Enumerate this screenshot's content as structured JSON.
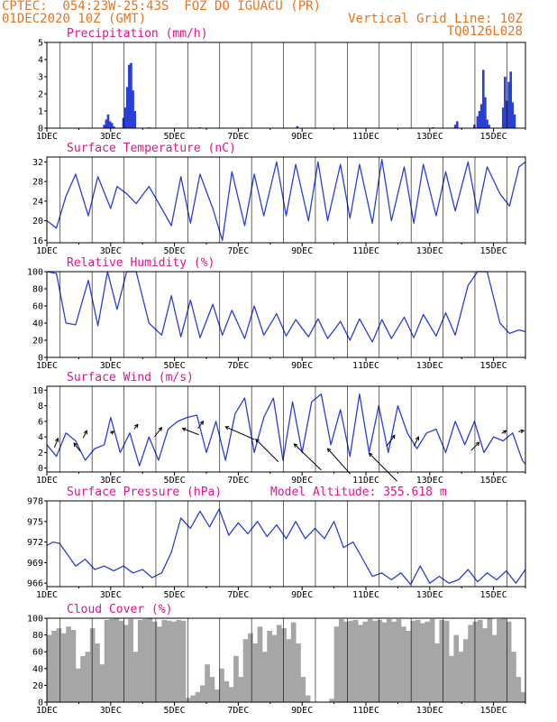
{
  "header": {
    "line1_left": "CPTEC:  054:23W-25:43S  FOZ DO IGUACU (PR)",
    "line2_left": "01DEC2020 10Z (GMT)",
    "line2_right": "Vertical Grid Line: 10Z",
    "line3_right": "TQ0126L028"
  },
  "colors": {
    "header": "#e8731c",
    "title": "#e0148c",
    "line": "#2a3fd6",
    "cloud": "#a6a6a6",
    "grid": "#000000"
  },
  "chart_data": [
    {
      "id": "precip",
      "type": "bar",
      "title": "Precipitation (mm/h)",
      "ylim": [
        0,
        5
      ],
      "yticks": [
        0,
        1,
        2,
        3,
        4,
        5
      ],
      "xticks": [
        "1DEC",
        "3DEC",
        "5DEC",
        "7DEC",
        "9DEC",
        "11DEC",
        "13DEC",
        "15DEC"
      ],
      "bars": [
        {
          "x": 2.8,
          "y": 0.2
        },
        {
          "x": 2.86,
          "y": 0.5
        },
        {
          "x": 2.92,
          "y": 0.8
        },
        {
          "x": 2.98,
          "y": 0.4
        },
        {
          "x": 3.04,
          "y": 0.3
        },
        {
          "x": 3.1,
          "y": 0.1
        },
        {
          "x": 3.4,
          "y": 0.6
        },
        {
          "x": 3.46,
          "y": 1.2
        },
        {
          "x": 3.52,
          "y": 2.4
        },
        {
          "x": 3.58,
          "y": 3.7
        },
        {
          "x": 3.64,
          "y": 3.8
        },
        {
          "x": 3.7,
          "y": 2.2
        },
        {
          "x": 3.76,
          "y": 1.0
        },
        {
          "x": 4.2,
          "y": 0.05
        },
        {
          "x": 5.8,
          "y": 0.05
        },
        {
          "x": 8.85,
          "y": 0.12
        },
        {
          "x": 13.1,
          "y": 0.05
        },
        {
          "x": 13.8,
          "y": 0.2
        },
        {
          "x": 13.86,
          "y": 0.4
        },
        {
          "x": 14.4,
          "y": 0.2
        },
        {
          "x": 14.5,
          "y": 0.7
        },
        {
          "x": 14.56,
          "y": 1.0
        },
        {
          "x": 14.62,
          "y": 1.4
        },
        {
          "x": 14.68,
          "y": 3.4
        },
        {
          "x": 14.74,
          "y": 1.8
        },
        {
          "x": 14.8,
          "y": 0.5
        },
        {
          "x": 14.86,
          "y": 0.2
        },
        {
          "x": 15.3,
          "y": 1.2
        },
        {
          "x": 15.36,
          "y": 3.0
        },
        {
          "x": 15.42,
          "y": 1.6
        },
        {
          "x": 15.48,
          "y": 2.7
        },
        {
          "x": 15.54,
          "y": 3.3
        },
        {
          "x": 15.6,
          "y": 1.5
        },
        {
          "x": 15.66,
          "y": 0.8
        }
      ]
    },
    {
      "id": "temp",
      "type": "line",
      "title": "Surface Temperature (nC)",
      "ylim": [
        15.5,
        33
      ],
      "yticks": [
        16,
        20,
        24,
        28,
        32
      ],
      "xticks": [
        "1DEC",
        "3DEC",
        "5DEC",
        "7DEC",
        "9DEC",
        "11DEC",
        "13DEC",
        "15DEC"
      ],
      "x": [
        1.0,
        1.3,
        1.6,
        1.9,
        2.3,
        2.6,
        3.0,
        3.2,
        3.5,
        3.8,
        4.2,
        4.6,
        4.9,
        5.2,
        5.5,
        5.8,
        6.2,
        6.5,
        6.8,
        7.2,
        7.5,
        7.8,
        8.2,
        8.5,
        8.8,
        9.2,
        9.5,
        9.8,
        10.2,
        10.5,
        10.8,
        11.2,
        11.5,
        11.8,
        12.2,
        12.5,
        12.8,
        13.2,
        13.5,
        13.8,
        14.2,
        14.5,
        14.8,
        15.2,
        15.5,
        15.8,
        16.0
      ],
      "y": [
        20,
        18.5,
        25,
        29.5,
        21,
        29,
        22.5,
        27,
        25.5,
        23.5,
        27,
        22.5,
        19,
        29,
        19.5,
        29.5,
        22.5,
        16,
        30,
        19,
        29.5,
        21,
        32,
        21,
        31.5,
        20,
        32,
        20,
        31.5,
        20.5,
        31.5,
        19.5,
        32.5,
        20,
        31,
        19.5,
        31.5,
        21,
        30,
        22,
        32,
        21.5,
        31,
        25.5,
        23,
        31,
        32
      ]
    },
    {
      "id": "rh",
      "type": "line",
      "title": "Relative Humidity (%)",
      "ylim": [
        0,
        100
      ],
      "yticks": [
        0,
        20,
        40,
        60,
        80,
        100
      ],
      "xticks": [
        "1DEC",
        "3DEC",
        "5DEC",
        "7DEC",
        "9DEC",
        "11DEC",
        "13DEC",
        "15DEC"
      ],
      "x": [
        1.0,
        1.3,
        1.6,
        1.9,
        2.3,
        2.6,
        2.9,
        3.2,
        3.5,
        3.8,
        4.2,
        4.6,
        4.9,
        5.2,
        5.5,
        5.8,
        6.2,
        6.5,
        6.8,
        7.2,
        7.5,
        7.8,
        8.2,
        8.5,
        8.8,
        9.2,
        9.5,
        9.8,
        10.2,
        10.5,
        10.8,
        11.2,
        11.5,
        11.8,
        12.2,
        12.5,
        12.8,
        13.2,
        13.5,
        13.8,
        14.2,
        14.5,
        14.8,
        15.2,
        15.5,
        15.8,
        16.0
      ],
      "y": [
        100,
        98,
        40,
        38,
        90,
        37,
        100,
        56,
        100,
        100,
        40,
        26,
        72,
        24,
        67,
        23,
        62,
        26,
        55,
        22,
        60,
        26,
        51,
        25,
        44,
        24,
        45,
        22,
        42,
        20,
        45,
        18,
        44,
        22,
        47,
        23,
        50,
        25,
        52,
        26,
        84,
        100,
        100,
        40,
        28,
        32,
        30
      ]
    },
    {
      "id": "wind",
      "type": "line",
      "title": "Surface Wind (m/s)",
      "ylim": [
        -0.5,
        10.5
      ],
      "yticks": [
        0,
        2,
        4,
        6,
        8,
        10
      ],
      "xticks": [
        "1DEC",
        "3DEC",
        "5DEC",
        "7DEC",
        "9DEC",
        "11DEC",
        "13DEC",
        "15DEC"
      ],
      "x": [
        1.0,
        1.3,
        1.6,
        1.9,
        2.2,
        2.5,
        2.8,
        3.0,
        3.3,
        3.6,
        3.9,
        4.2,
        4.5,
        4.8,
        5.1,
        5.4,
        5.7,
        6.0,
        6.3,
        6.6,
        6.9,
        7.2,
        7.5,
        7.8,
        8.1,
        8.4,
        8.7,
        9.0,
        9.3,
        9.6,
        9.9,
        10.2,
        10.5,
        10.8,
        11.1,
        11.4,
        11.7,
        12.0,
        12.3,
        12.6,
        12.9,
        13.2,
        13.5,
        13.8,
        14.1,
        14.4,
        14.7,
        15.0,
        15.3,
        15.6,
        15.9,
        16.0
      ],
      "y": [
        3,
        1.5,
        4.5,
        3.5,
        1,
        2.5,
        3,
        6.5,
        2,
        4.5,
        0.3,
        4,
        1,
        5,
        6,
        6.5,
        6.8,
        2,
        6,
        1,
        7,
        9,
        2,
        6.5,
        9,
        1,
        8.5,
        2,
        8.5,
        9.5,
        3,
        7.5,
        1.5,
        9.5,
        2,
        8,
        2,
        8,
        4.5,
        2.5,
        4.5,
        5,
        2,
        6,
        3,
        6,
        2,
        4,
        3.5,
        4.5,
        1,
        0.5
      ],
      "arrows": [
        {
          "x": 1.35,
          "y": 3.8,
          "dx": -4,
          "dy": 10
        },
        {
          "x": 1.85,
          "y": 3.2,
          "dx": 7,
          "dy": 9
        },
        {
          "x": 2.25,
          "y": 4.8,
          "dx": -4,
          "dy": 8
        },
        {
          "x": 3.1,
          "y": 4.7,
          "dx": -4,
          "dy": 2
        },
        {
          "x": 3.85,
          "y": 5.6,
          "dx": -4,
          "dy": 5
        },
        {
          "x": 4.6,
          "y": 5.2,
          "dx": -8,
          "dy": 10
        },
        {
          "x": 5.25,
          "y": 5.1,
          "dx": 18,
          "dy": 7
        },
        {
          "x": 5.9,
          "y": 6.0,
          "dx": -6,
          "dy": 8
        },
        {
          "x": 6.6,
          "y": 5.3,
          "dx": 32,
          "dy": 14
        },
        {
          "x": 7.55,
          "y": 3.7,
          "dx": 25,
          "dy": 25
        },
        {
          "x": 8.75,
          "y": 3.1,
          "dx": 30,
          "dy": 29
        },
        {
          "x": 9.8,
          "y": 2.5,
          "dx": 25,
          "dy": 28
        },
        {
          "x": 11.1,
          "y": 1.9,
          "dx": 31,
          "dy": 31
        },
        {
          "x": 11.9,
          "y": 4.2,
          "dx": -9,
          "dy": 12
        },
        {
          "x": 12.65,
          "y": 4.0,
          "dx": -5,
          "dy": 10
        },
        {
          "x": 14.55,
          "y": 3.3,
          "dx": -9,
          "dy": 9
        },
        {
          "x": 15.4,
          "y": 4.8,
          "dx": -5,
          "dy": 3
        },
        {
          "x": 15.95,
          "y": 4.8,
          "dx": -6,
          "dy": 1
        }
      ]
    },
    {
      "id": "pres",
      "type": "line",
      "title": "Surface Pressure (hPa)",
      "subtitle": "Model Altitude: 355.618 m",
      "ylim": [
        965.5,
        978
      ],
      "yticks": [
        966,
        969,
        972,
        975,
        978
      ],
      "xticks": [
        "1DEC",
        "3DEC",
        "5DEC",
        "7DEC",
        "9DEC",
        "11DEC",
        "13DEC",
        "15DEC"
      ],
      "x": [
        1.0,
        1.2,
        1.4,
        1.6,
        1.9,
        2.2,
        2.5,
        2.8,
        3.1,
        3.4,
        3.7,
        4.0,
        4.3,
        4.6,
        4.9,
        5.2,
        5.5,
        5.8,
        6.1,
        6.4,
        6.7,
        7.0,
        7.3,
        7.6,
        7.9,
        8.2,
        8.5,
        8.8,
        9.1,
        9.4,
        9.7,
        10.0,
        10.3,
        10.6,
        10.9,
        11.2,
        11.5,
        11.8,
        12.1,
        12.4,
        12.7,
        13.0,
        13.3,
        13.6,
        13.9,
        14.2,
        14.5,
        14.8,
        15.1,
        15.4,
        15.7,
        16.0
      ],
      "y": [
        971.5,
        972,
        971.8,
        970.5,
        968.5,
        969.5,
        968,
        968.5,
        967.8,
        968.5,
        967.5,
        968,
        966.8,
        967.5,
        970.5,
        975.5,
        974,
        976.5,
        974.2,
        976.8,
        973,
        974.8,
        973.2,
        975,
        972.8,
        974.5,
        972.5,
        975,
        972.5,
        974,
        972.5,
        975,
        971.2,
        972,
        969.5,
        967,
        967.5,
        966.5,
        967.5,
        965.8,
        968.5,
        966,
        967,
        966,
        966.5,
        968,
        966.2,
        967.5,
        966.5,
        967.8,
        966,
        968
      ]
    },
    {
      "id": "cloud",
      "type": "area",
      "title": "Cloud Cover (%)",
      "ylim": [
        0,
        100
      ],
      "yticks": [
        0,
        20,
        40,
        60,
        80,
        100
      ],
      "xticks": [
        "1DEC",
        "3DEC",
        "5DEC",
        "7DEC",
        "9DEC",
        "11DEC",
        "13DEC",
        "15DEC"
      ],
      "x": [
        1.0,
        1.15,
        1.3,
        1.45,
        1.6,
        1.75,
        1.9,
        2.05,
        2.2,
        2.35,
        2.5,
        2.65,
        2.8,
        2.95,
        3.1,
        3.25,
        3.4,
        3.55,
        3.7,
        3.85,
        4.0,
        4.15,
        4.3,
        4.45,
        4.6,
        4.75,
        4.9,
        5.05,
        5.2,
        5.35,
        5.5,
        5.65,
        5.8,
        5.95,
        6.1,
        6.25,
        6.4,
        6.55,
        6.7,
        6.85,
        7.0,
        7.15,
        7.3,
        7.45,
        7.6,
        7.75,
        7.9,
        8.05,
        8.2,
        8.35,
        8.5,
        8.65,
        8.8,
        8.95,
        9.1,
        9.25,
        9.4,
        9.55,
        9.7,
        9.85,
        10.0,
        10.15,
        10.3,
        10.45,
        10.6,
        10.75,
        10.9,
        11.05,
        11.2,
        11.35,
        11.5,
        11.65,
        11.8,
        11.95,
        12.1,
        12.25,
        12.4,
        12.55,
        12.7,
        12.85,
        13.0,
        13.15,
        13.3,
        13.45,
        13.6,
        13.75,
        13.9,
        14.05,
        14.2,
        14.35,
        14.5,
        14.65,
        14.8,
        14.95,
        15.1,
        15.25,
        15.4,
        15.55,
        15.7,
        15.85,
        16.0
      ],
      "y": [
        80,
        85,
        88,
        82,
        90,
        86,
        40,
        55,
        60,
        88,
        70,
        45,
        98,
        99,
        100,
        97,
        92,
        99,
        60,
        98,
        99,
        100,
        96,
        90,
        98,
        97,
        96,
        98,
        97,
        5,
        8,
        12,
        20,
        45,
        30,
        15,
        40,
        25,
        18,
        55,
        30,
        75,
        82,
        70,
        90,
        60,
        85,
        80,
        92,
        88,
        75,
        95,
        70,
        30,
        8,
        0,
        0,
        0,
        0,
        4,
        90,
        99,
        96,
        97,
        98,
        92,
        96,
        99,
        97,
        98,
        95,
        99,
        96,
        99,
        90,
        85,
        97,
        98,
        94,
        96,
        99,
        70,
        98,
        97,
        55,
        80,
        60,
        75,
        92,
        96,
        98,
        88,
        100,
        80,
        99,
        100,
        96,
        60,
        30,
        12,
        5
      ]
    }
  ]
}
